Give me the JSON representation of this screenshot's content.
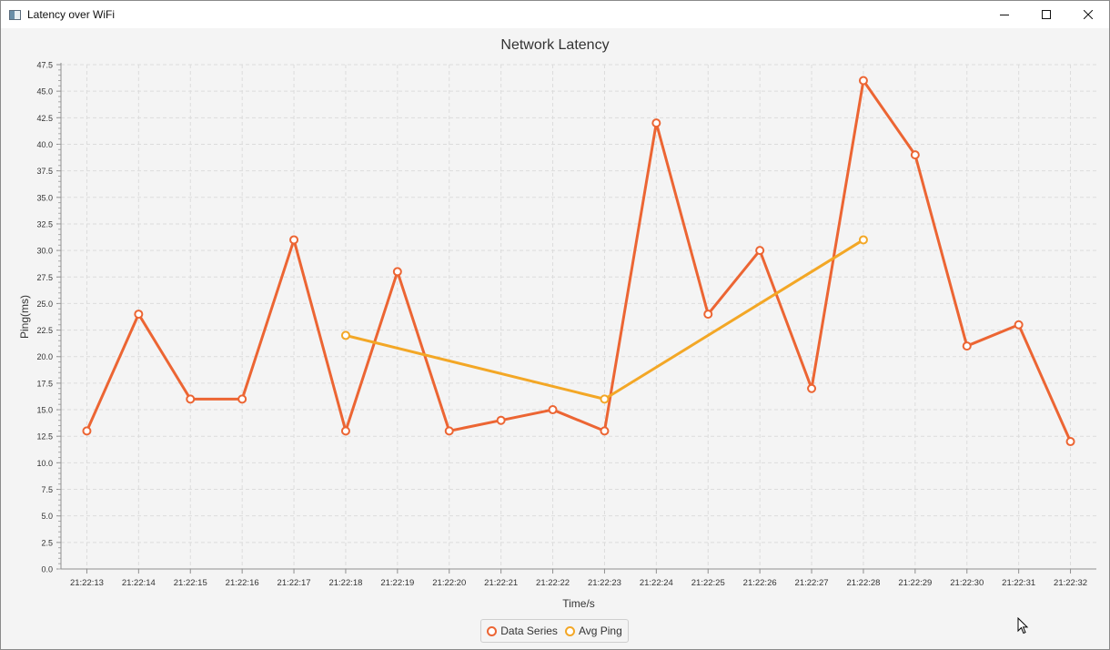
{
  "window": {
    "title": "Latency over WiFi",
    "controls": [
      "minimize",
      "maximize",
      "close"
    ]
  },
  "legend": {
    "items": [
      {
        "label": "Data Series",
        "color": "#ec6533"
      },
      {
        "label": "Avg Ping",
        "color": "#f3a726"
      }
    ]
  },
  "chart_data": {
    "type": "line",
    "title": "Network Latency",
    "xlabel": "Time/s",
    "ylabel": "Ping(ms)",
    "categories": [
      "21:22:13",
      "21:22:14",
      "21:22:15",
      "21:22:16",
      "21:22:17",
      "21:22:18",
      "21:22:19",
      "21:22:20",
      "21:22:21",
      "21:22:22",
      "21:22:23",
      "21:22:24",
      "21:22:25",
      "21:22:26",
      "21:22:27",
      "21:22:28",
      "21:22:29",
      "21:22:30",
      "21:22:31",
      "21:22:32"
    ],
    "ylim": [
      0,
      47.5
    ],
    "ytick_step": 2.5,
    "grid": true,
    "legend_position": "bottom",
    "series": [
      {
        "name": "Data Series",
        "color": "#ec6533",
        "x": [
          "21:22:13",
          "21:22:14",
          "21:22:15",
          "21:22:16",
          "21:22:17",
          "21:22:18",
          "21:22:19",
          "21:22:20",
          "21:22:21",
          "21:22:22",
          "21:22:23",
          "21:22:24",
          "21:22:25",
          "21:22:26",
          "21:22:27",
          "21:22:28",
          "21:22:29",
          "21:22:30",
          "21:22:31",
          "21:22:32"
        ],
        "values": [
          13,
          24,
          16,
          16,
          31,
          13,
          28,
          13,
          14,
          15,
          13,
          42,
          24,
          30,
          17,
          46,
          39,
          21,
          23,
          12
        ]
      },
      {
        "name": "Avg Ping",
        "color": "#f3a726",
        "x": [
          "21:22:18",
          "21:22:23",
          "21:22:28"
        ],
        "values": [
          22,
          16,
          31
        ]
      }
    ]
  }
}
